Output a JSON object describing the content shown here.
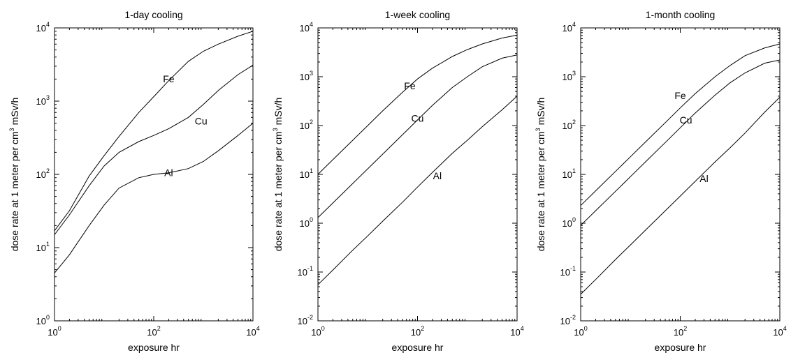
{
  "chart_data": [
    {
      "type": "line",
      "title": "1-day cooling",
      "xlabel": "exposure  hr",
      "ylabel": "dose rate at 1 meter per cm3  mSv/h",
      "xscale": "log",
      "yscale": "log",
      "xlim": [
        1,
        10000
      ],
      "ylim": [
        1,
        10000
      ],
      "x_ticks": [
        {
          "base": "10",
          "exp": "0"
        },
        {
          "base": "10",
          "exp": "2"
        },
        {
          "base": "10",
          "exp": "4"
        }
      ],
      "y_ticks": [
        {
          "base": "10",
          "exp": "0"
        },
        {
          "base": "10",
          "exp": "1"
        },
        {
          "base": "10",
          "exp": "2"
        },
        {
          "base": "10",
          "exp": "3"
        },
        {
          "base": "10",
          "exp": "4"
        }
      ],
      "series": [
        {
          "name": "Fe",
          "label_at": [
            200,
            1800
          ],
          "x": [
            1,
            2,
            5,
            10,
            20,
            50,
            100,
            200,
            500,
            1000,
            2000,
            5000,
            10000
          ],
          "y": [
            17,
            32,
            95,
            180,
            330,
            700,
            1150,
            1900,
            3500,
            4800,
            6000,
            7700,
            9000
          ]
        },
        {
          "name": "Cu",
          "label_at": [
            900,
            480
          ],
          "x": [
            1,
            2,
            5,
            10,
            20,
            50,
            100,
            200,
            500,
            1000,
            2000,
            5000,
            10000
          ],
          "y": [
            15,
            28,
            70,
            130,
            200,
            280,
            340,
            420,
            600,
            900,
            1400,
            2300,
            3100
          ]
        },
        {
          "name": "Al",
          "label_at": [
            200,
            95
          ],
          "x": [
            1,
            2,
            5,
            10,
            20,
            50,
            100,
            200,
            500,
            1000,
            2000,
            5000,
            10000
          ],
          "y": [
            4.5,
            8,
            20,
            38,
            65,
            90,
            100,
            105,
            120,
            150,
            210,
            340,
            500
          ]
        }
      ]
    },
    {
      "type": "line",
      "title": "1-week cooling",
      "xlabel": "exposure  hr",
      "ylabel": "dose rate at 1 meter per cm3  mSv/h",
      "xscale": "log",
      "yscale": "log",
      "xlim": [
        1,
        10000
      ],
      "ylim": [
        0.01,
        10000
      ],
      "x_ticks": [
        {
          "base": "10",
          "exp": "0"
        },
        {
          "base": "10",
          "exp": "2"
        },
        {
          "base": "10",
          "exp": "4"
        }
      ],
      "y_ticks": [
        {
          "base": "10",
          "exp": "-2"
        },
        {
          "base": "10",
          "exp": "-1"
        },
        {
          "base": "10",
          "exp": "0"
        },
        {
          "base": "10",
          "exp": "1"
        },
        {
          "base": "10",
          "exp": "2"
        },
        {
          "base": "10",
          "exp": "3"
        },
        {
          "base": "10",
          "exp": "4"
        }
      ],
      "series": [
        {
          "name": "Fe",
          "label_at": [
            70,
            550
          ],
          "x": [
            1,
            2,
            5,
            10,
            20,
            50,
            100,
            200,
            500,
            1000,
            2000,
            5000,
            10000
          ],
          "y": [
            10,
            20,
            50,
            100,
            200,
            480,
            900,
            1500,
            2600,
            3600,
            4700,
            6200,
            7100
          ]
        },
        {
          "name": "Cu",
          "label_at": [
            100,
            120
          ],
          "x": [
            1,
            2,
            5,
            10,
            20,
            50,
            100,
            200,
            500,
            1000,
            2000,
            5000,
            10000
          ],
          "y": [
            1.3,
            2.6,
            6.5,
            13,
            26,
            65,
            130,
            260,
            600,
            1000,
            1600,
            2400,
            2800
          ]
        },
        {
          "name": "Al",
          "label_at": [
            250,
            8
          ],
          "x": [
            1,
            2,
            5,
            10,
            20,
            50,
            100,
            200,
            500,
            1000,
            2000,
            5000,
            10000
          ],
          "y": [
            0.055,
            0.11,
            0.28,
            0.55,
            1.1,
            2.7,
            5.5,
            11,
            27,
            50,
            95,
            210,
            400
          ]
        }
      ]
    },
    {
      "type": "line",
      "title": "1-month cooling",
      "xlabel": "exposure  hr",
      "ylabel": "dose rate at 1 meter per cm3  mSv/h",
      "xscale": "log",
      "yscale": "log",
      "xlim": [
        1,
        10000
      ],
      "ylim": [
        0.01,
        10000
      ],
      "x_ticks": [
        {
          "base": "10",
          "exp": "0"
        },
        {
          "base": "10",
          "exp": "2"
        },
        {
          "base": "10",
          "exp": "4"
        }
      ],
      "y_ticks": [
        {
          "base": "10",
          "exp": "-2"
        },
        {
          "base": "10",
          "exp": "-1"
        },
        {
          "base": "10",
          "exp": "0"
        },
        {
          "base": "10",
          "exp": "1"
        },
        {
          "base": "10",
          "exp": "2"
        },
        {
          "base": "10",
          "exp": "3"
        },
        {
          "base": "10",
          "exp": "4"
        }
      ],
      "series": [
        {
          "name": "Fe",
          "label_at": [
            100,
            350
          ],
          "x": [
            1,
            2,
            5,
            10,
            20,
            50,
            100,
            200,
            500,
            1000,
            2000,
            5000,
            10000
          ],
          "y": [
            2.3,
            4.6,
            11.5,
            23,
            46,
            115,
            230,
            450,
            1000,
            1700,
            2700,
            3900,
            4700
          ]
        },
        {
          "name": "Cu",
          "label_at": [
            130,
            110
          ],
          "x": [
            1,
            2,
            5,
            10,
            20,
            50,
            100,
            200,
            500,
            1000,
            2000,
            5000,
            10000
          ],
          "y": [
            0.9,
            1.8,
            4.5,
            9,
            18,
            45,
            90,
            180,
            420,
            750,
            1200,
            1900,
            2200
          ]
        },
        {
          "name": "Al",
          "label_at": [
            300,
            7
          ],
          "x": [
            1,
            2,
            5,
            10,
            20,
            50,
            100,
            200,
            500,
            1000,
            2000,
            5000,
            10000
          ],
          "y": [
            0.035,
            0.07,
            0.18,
            0.36,
            0.72,
            1.8,
            3.6,
            7.2,
            18,
            35,
            70,
            190,
            380
          ]
        }
      ]
    }
  ]
}
